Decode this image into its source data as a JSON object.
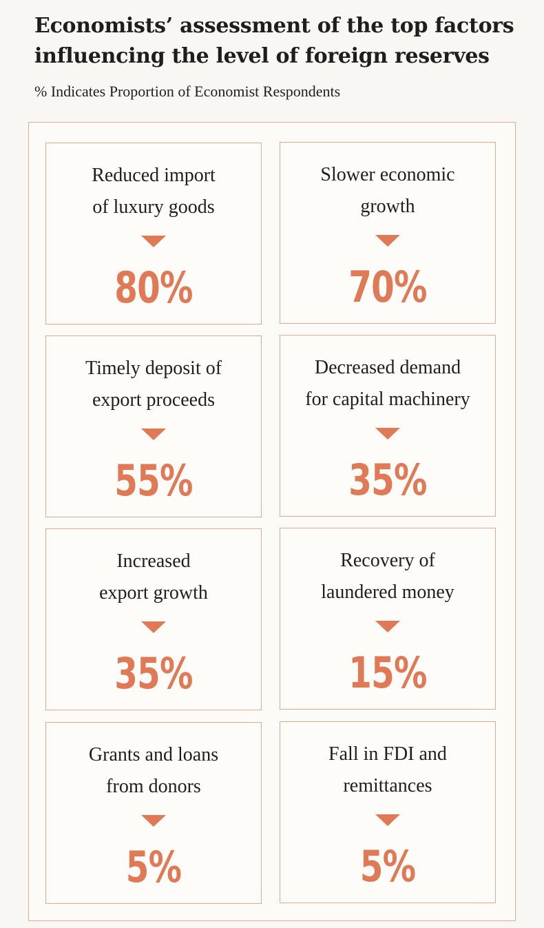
{
  "colors": {
    "accent": "#df7956",
    "border": "#e4a98f",
    "text": "#1f1d1d",
    "background": "#f8f7f3"
  },
  "chart_data": {
    "type": "table",
    "title": "Economists’ assessment of the top factors influencing the level of foreign reserves",
    "subtitle": "% Indicates Proportion of Economist Respondents",
    "unit": "%",
    "categories": [
      "Reduced import of luxury goods",
      "Slower economic growth",
      "Timely deposit of export proceeds",
      "Decreased demand for capital machinery",
      "Increased export growth",
      "Recovery of laundered money",
      "Grants and loans from donors",
      "Fall in FDI and remittances"
    ],
    "values": [
      80,
      70,
      55,
      35,
      35,
      15,
      5,
      5
    ],
    "items": [
      {
        "label": "Reduced import\nof luxury goods",
        "value": "80%",
        "indicator": "down-arrow-icon"
      },
      {
        "label": "Slower economic\ngrowth",
        "value": "70%",
        "indicator": "down-arrow-icon"
      },
      {
        "label": "Timely deposit of\nexport proceeds",
        "value": "55%",
        "indicator": "down-arrow-icon"
      },
      {
        "label": "Decreased demand\nfor capital machinery",
        "value": "35%",
        "indicator": "down-arrow-icon"
      },
      {
        "label": "Increased\nexport growth",
        "value": "35%",
        "indicator": "down-arrow-icon"
      },
      {
        "label": "Recovery of\nlaundered money",
        "value": "15%",
        "indicator": "down-arrow-icon"
      },
      {
        "label": "Grants and loans\nfrom donors",
        "value": "5%",
        "indicator": "down-arrow-icon"
      },
      {
        "label": "Fall in FDI and\nremittances",
        "value": "5%",
        "indicator": "down-arrow-icon"
      }
    ]
  }
}
